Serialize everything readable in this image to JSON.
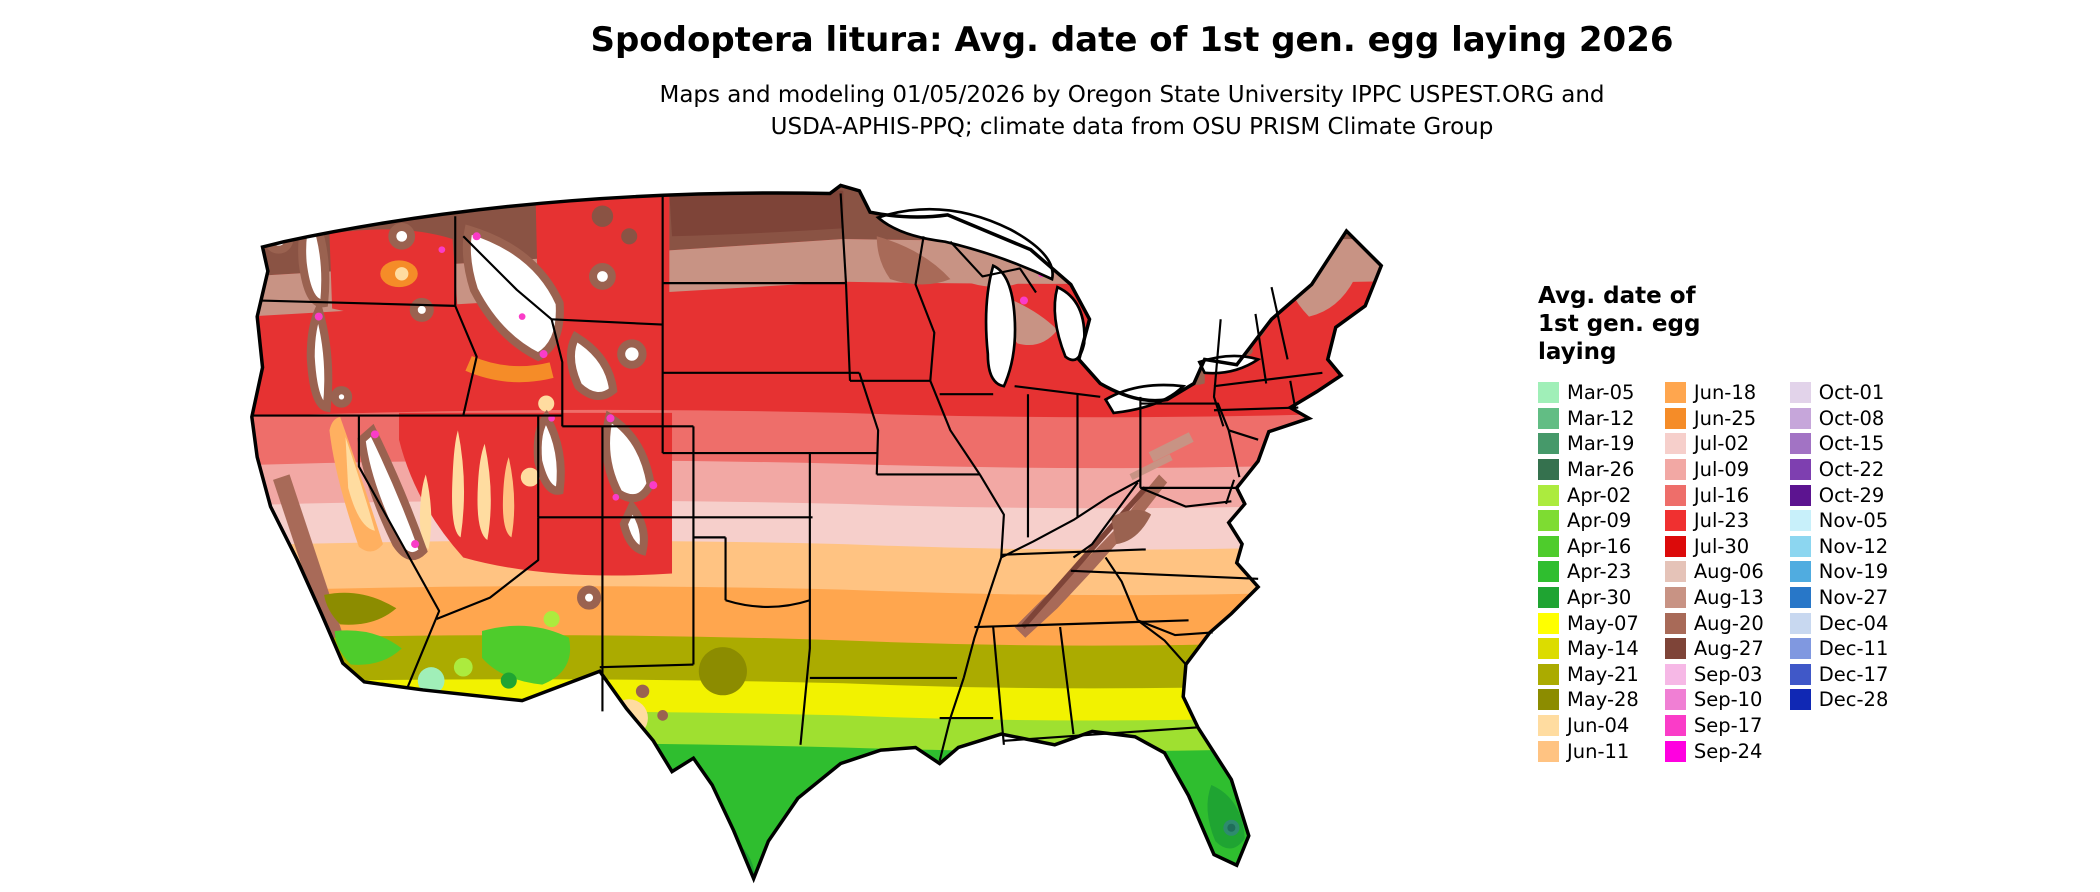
{
  "header": {
    "title": "Spodoptera litura: Avg. date of 1st gen. egg laying 2026",
    "subtitle_line1": "Maps and modeling 01/05/2026 by Oregon State University IPPC USPEST.ORG and",
    "subtitle_line2": "USDA-APHIS-PPQ; climate data from OSU PRISM Climate Group"
  },
  "legend": {
    "title_lines": [
      "Avg. date of",
      "1st gen. egg",
      "laying"
    ],
    "columns": [
      {
        "items": [
          {
            "label": "Mar-05",
            "color": "#A0EFB8"
          },
          {
            "label": "Mar-12",
            "color": "#62BD84"
          },
          {
            "label": "Mar-19",
            "color": "#46996A"
          },
          {
            "label": "Mar-26",
            "color": "#35714E"
          },
          {
            "label": "Apr-02",
            "color": "#ACEB3E"
          },
          {
            "label": "Apr-09",
            "color": "#7EDC32"
          },
          {
            "label": "Apr-16",
            "color": "#4ECC2C"
          },
          {
            "label": "Apr-23",
            "color": "#2FBE2F"
          },
          {
            "label": "Apr-30",
            "color": "#1FA432"
          },
          {
            "label": "May-07",
            "color": "#FFFF00"
          },
          {
            "label": "May-14",
            "color": "#DCDC00"
          },
          {
            "label": "May-21",
            "color": "#ABAB00"
          },
          {
            "label": "May-28",
            "color": "#8C8C00"
          },
          {
            "label": "Jun-04",
            "color": "#FFDCA0"
          },
          {
            "label": "Jun-11",
            "color": "#FFC382"
          }
        ]
      },
      {
        "items": [
          {
            "label": "Jun-18",
            "color": "#FFA64E"
          },
          {
            "label": "Jun-25",
            "color": "#F58C28"
          },
          {
            "label": "Jul-02",
            "color": "#F6CFCB"
          },
          {
            "label": "Jul-09",
            "color": "#F2A8A4"
          },
          {
            "label": "Jul-16",
            "color": "#EE6E6A"
          },
          {
            "label": "Jul-23",
            "color": "#F03030"
          },
          {
            "label": "Jul-30",
            "color": "#DC0A0A"
          },
          {
            "label": "Aug-06",
            "color": "#E5C3B8"
          },
          {
            "label": "Aug-13",
            "color": "#C89384"
          },
          {
            "label": "Aug-20",
            "color": "#A86A58"
          },
          {
            "label": "Aug-27",
            "color": "#7E4438"
          },
          {
            "label": "Sep-03",
            "color": "#F6B8E6"
          },
          {
            "label": "Sep-10",
            "color": "#F07FD4"
          },
          {
            "label": "Sep-17",
            "color": "#FA3CC8"
          },
          {
            "label": "Sep-24",
            "color": "#FF00E0"
          }
        ]
      },
      {
        "items": [
          {
            "label": "Oct-01",
            "color": "#E2D3EA"
          },
          {
            "label": "Oct-08",
            "color": "#C6A6DA"
          },
          {
            "label": "Oct-15",
            "color": "#A273C4"
          },
          {
            "label": "Oct-22",
            "color": "#7E3FB0"
          },
          {
            "label": "Oct-29",
            "color": "#5C1490"
          },
          {
            "label": "Nov-05",
            "color": "#C8F0FA"
          },
          {
            "label": "Nov-12",
            "color": "#8CD6F0"
          },
          {
            "label": "Nov-19",
            "color": "#50ACE0"
          },
          {
            "label": "Nov-27",
            "color": "#2877C8"
          },
          {
            "label": "Dec-04",
            "color": "#C8D8F0"
          },
          {
            "label": "Dec-11",
            "color": "#8098E0"
          },
          {
            "label": "Dec-17",
            "color": "#4058C8"
          },
          {
            "label": "Dec-28",
            "color": "#1028B4"
          }
        ]
      }
    ]
  }
}
